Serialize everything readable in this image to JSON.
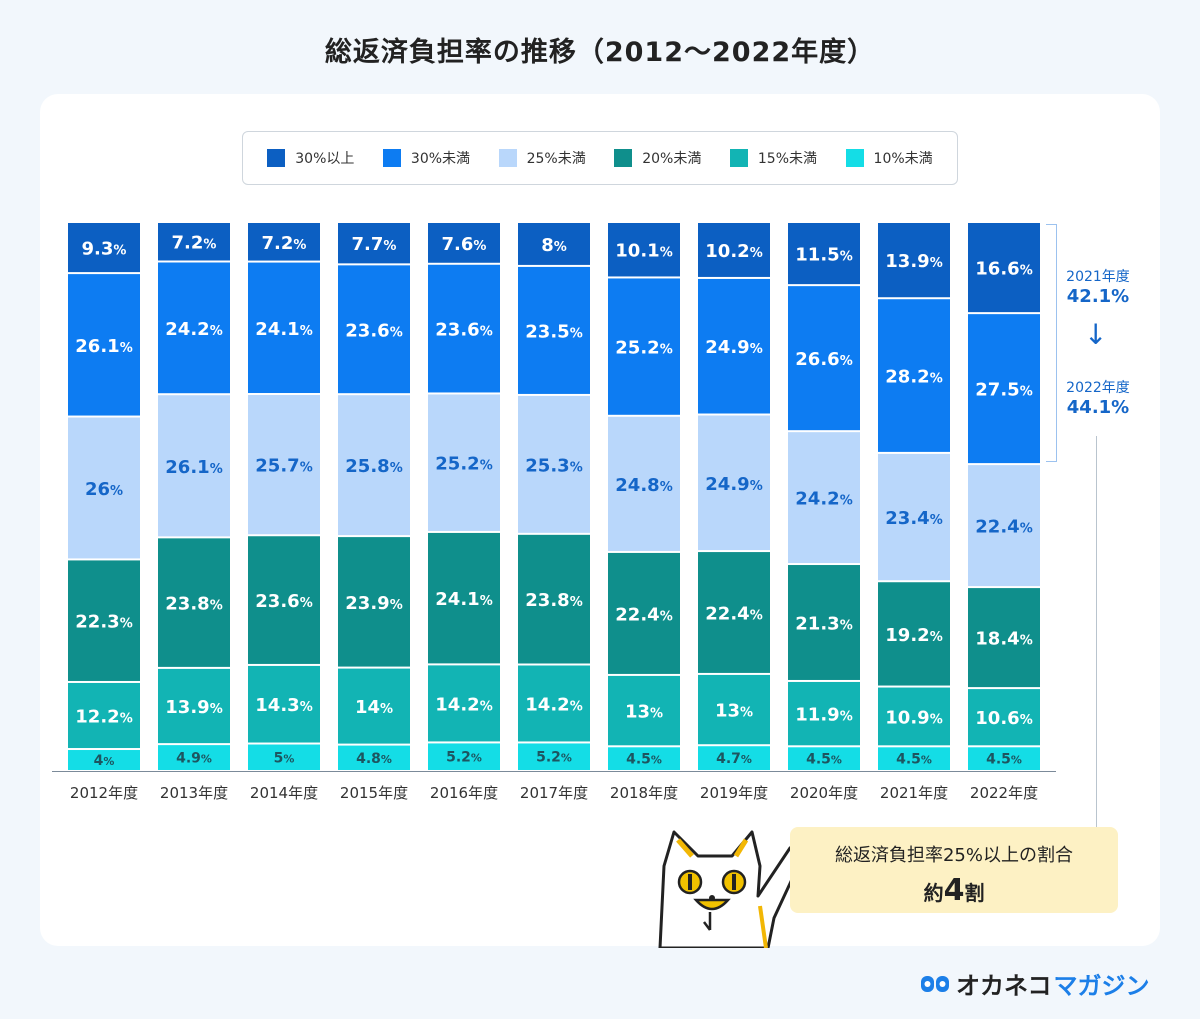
{
  "title": "総返済負担率の推移（2012〜2022年度）",
  "legend": [
    {
      "label": "30%以上",
      "color": "#0c5fc2"
    },
    {
      "label": "30%未満",
      "color": "#0d7cf2"
    },
    {
      "label": "25%未満",
      "color": "#b9d7fb"
    },
    {
      "label": "20%未満",
      "color": "#0f8f8c"
    },
    {
      "label": "15%未満",
      "color": "#12b4b4"
    },
    {
      "label": "10%未満",
      "color": "#14dde6"
    }
  ],
  "chart_data": {
    "type": "bar",
    "stacked": true,
    "categories": [
      "2012年度",
      "2013年度",
      "2014年度",
      "2015年度",
      "2016年度",
      "2017年度",
      "2018年度",
      "2019年度",
      "2020年度",
      "2021年度",
      "2022年度"
    ],
    "series": [
      {
        "name": "30%以上",
        "values": [
          9.3,
          7.2,
          7.2,
          7.7,
          7.6,
          8,
          10.1,
          10.2,
          11.5,
          13.9,
          16.6
        ]
      },
      {
        "name": "30%未満",
        "values": [
          26.1,
          24.2,
          24.1,
          23.6,
          23.6,
          23.5,
          25.2,
          24.9,
          26.6,
          28.2,
          27.5
        ]
      },
      {
        "name": "25%未満",
        "values": [
          26,
          26.1,
          25.7,
          25.8,
          25.2,
          25.3,
          24.8,
          24.9,
          24.2,
          23.4,
          22.4
        ]
      },
      {
        "name": "20%未満",
        "values": [
          22.3,
          23.8,
          23.6,
          23.9,
          24.1,
          23.8,
          22.4,
          22.4,
          21.3,
          19.2,
          18.4
        ]
      },
      {
        "name": "15%未満",
        "values": [
          12.2,
          13.9,
          14.3,
          14,
          14.2,
          14.2,
          13,
          13,
          11.9,
          10.9,
          10.6
        ]
      },
      {
        "name": "10%未満",
        "values": [
          4,
          4.9,
          5,
          4.8,
          5.2,
          5.2,
          4.5,
          4.7,
          4.5,
          4.5,
          4.5
        ]
      }
    ],
    "unit": "%"
  },
  "side_note": {
    "year1": "2021年度",
    "value1": "42.1%",
    "arrow": "↓",
    "year2": "2022年度",
    "value2": "44.1%"
  },
  "callout": {
    "line1": "総返済負担率25%以上の割合",
    "line2_prefix": "約",
    "line2_number": "4",
    "line2_suffix": "割"
  },
  "brand": {
    "main": "オカネコ",
    "sub": "マガジン"
  }
}
